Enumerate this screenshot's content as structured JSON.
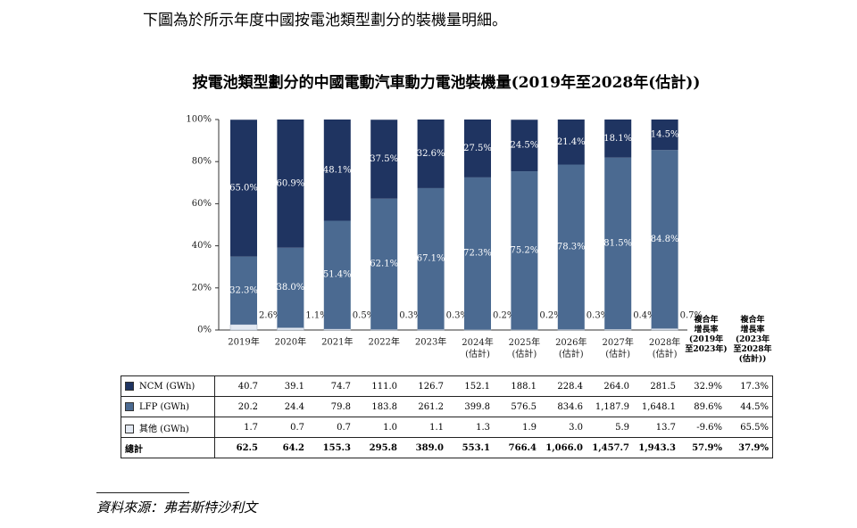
{
  "intro": "下圖為於所示年度中國按電池類型劃分的裝機量明細。",
  "chart_data": {
    "type": "stacked_bar",
    "title": "按電池類型劃分的中國電動汽車動力電池裝機量(2019年至2028年(估計))",
    "categories": [
      "2019年",
      "2020年",
      "2021年",
      "2022年",
      "2023年",
      "2024年\n(估計)",
      "2025年\n(估計)",
      "2026年\n(估計)",
      "2027年\n(估計)",
      "2028年\n(估計)"
    ],
    "ylim": [
      0,
      100
    ],
    "yticks": [
      {
        "value": 0,
        "label": "0%"
      },
      {
        "value": 20,
        "label": "20%"
      },
      {
        "value": 40,
        "label": "40%"
      },
      {
        "value": 60,
        "label": "60%"
      },
      {
        "value": 80,
        "label": "80%"
      },
      {
        "value": 100,
        "label": "100%"
      }
    ],
    "series": [
      {
        "color": "#e3e9f2",
        "values": [
          2.6,
          1.1,
          0.5,
          0.3,
          0.3,
          0.2,
          0.2,
          0.3,
          0.4,
          0.7
        ],
        "value_labels": [
          "2.6%",
          "1.1%",
          "0.5%",
          "0.3%",
          "0.3%",
          "0.2%",
          "0.2%",
          "0.3%",
          "0.4%",
          "0.7%"
        ]
      },
      {
        "color": "#4b6a91",
        "values": [
          32.3,
          38.0,
          51.4,
          62.1,
          67.1,
          72.3,
          75.2,
          78.3,
          81.5,
          84.8
        ],
        "value_labels": [
          "32.3%",
          "38.0%",
          "51.4%",
          "62.1%",
          "67.1%",
          "72.3%",
          "75.2%",
          "78.3%",
          "81.5%",
          "84.8%"
        ]
      },
      {
        "color": "#1f3461",
        "values": [
          65.0,
          60.9,
          48.1,
          37.5,
          32.6,
          27.5,
          24.5,
          21.4,
          18.1,
          14.5
        ],
        "value_labels": [
          "65.0%",
          "60.9%",
          "48.1%",
          "37.5%",
          "32.6%",
          "27.5%",
          "24.5%",
          "21.4%",
          "18.1%",
          "14.5%"
        ]
      }
    ]
  },
  "table": {
    "header": [
      "複合年\n增長率\n(2019年\n至2023年)",
      "複合年\n增長率\n(2023年\n至2028年\n(估計))"
    ],
    "rows": [
      {
        "label": "NCM (GWh)",
        "values": [
          "40.7",
          "39.1",
          "74.7",
          "111.0",
          "126.7",
          "152.1",
          "188.1",
          "228.4",
          "264.0",
          "281.5",
          "32.9%",
          "17.3%"
        ]
      },
      {
        "label": "LFP (GWh)",
        "values": [
          "20.2",
          "24.4",
          "79.8",
          "183.8",
          "261.2",
          "399.8",
          "576.5",
          "834.6",
          "1,187.9",
          "1,648.1",
          "89.6%",
          "44.5%"
        ]
      },
      {
        "label": "其他 (GWh)",
        "values": [
          "1.7",
          "0.7",
          "0.7",
          "1.0",
          "1.1",
          "1.3",
          "1.9",
          "3.0",
          "5.9",
          "13.7",
          "-9.6%",
          "65.5%"
        ]
      },
      {
        "label": "總計",
        "values": [
          "62.5",
          "64.2",
          "155.3",
          "295.8",
          "389.0",
          "553.1",
          "766.4",
          "1,066.0",
          "1,457.7",
          "1,943.3",
          "57.9%",
          "37.9%"
        ]
      }
    ]
  },
  "source": "資料來源：弗若斯特沙利文"
}
